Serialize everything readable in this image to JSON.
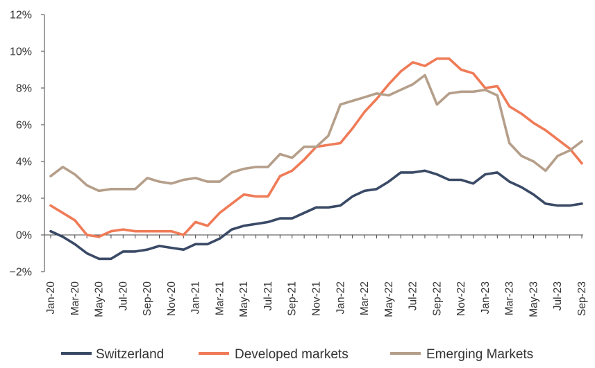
{
  "chart_data": {
    "type": "line",
    "title": "",
    "xlabel": "",
    "ylabel": "",
    "ylim": [
      -2,
      12
    ],
    "yticks": [
      -2,
      0,
      2,
      4,
      6,
      8,
      10,
      12
    ],
    "ytick_format": "{v}%",
    "ytick_labels": [
      "−2%",
      "0%",
      "2%",
      "4%",
      "6%",
      "8%",
      "10%",
      "12%"
    ],
    "x": [
      "Jan-20",
      "Feb-20",
      "Mar-20",
      "Apr-20",
      "May-20",
      "Jun-20",
      "Jul-20",
      "Aug-20",
      "Sep-20",
      "Oct-20",
      "Nov-20",
      "Dec-20",
      "Jan-21",
      "Feb-21",
      "Mar-21",
      "Apr-21",
      "May-21",
      "Jun-21",
      "Jul-21",
      "Aug-21",
      "Sep-21",
      "Oct-21",
      "Nov-21",
      "Dec-21",
      "Jan-22",
      "Feb-22",
      "Mar-22",
      "Apr-22",
      "May-22",
      "Jun-22",
      "Jul-22",
      "Aug-22",
      "Sep-22",
      "Oct-22",
      "Nov-22",
      "Dec-22",
      "Jan-23",
      "Feb-23",
      "Mar-23",
      "Apr-23",
      "May-23",
      "Jun-23",
      "Jul-23",
      "Aug-23",
      "Sep-23"
    ],
    "xtick_labels": [
      "Jan-20",
      "Mar-20",
      "May-20",
      "Jul-20",
      "Sep-20",
      "Nov-20",
      "Jan-21",
      "Mar-21",
      "May-21",
      "Jul-21",
      "Sep-21",
      "Nov-21",
      "Jan-22",
      "Mar-22",
      "May-22",
      "Jul-22",
      "Sep-22",
      "Nov-22",
      "Jan-23",
      "Mar-23",
      "May-23",
      "Jul-23",
      "Sep-23"
    ],
    "grid": false,
    "legend_position": "bottom",
    "series": [
      {
        "name": "Switzerland",
        "color": "#3a4a66",
        "values": [
          0.2,
          -0.1,
          -0.5,
          -1.0,
          -1.3,
          -1.3,
          -0.9,
          -0.9,
          -0.8,
          -0.6,
          -0.7,
          -0.8,
          -0.5,
          -0.5,
          -0.2,
          0.3,
          0.5,
          0.6,
          0.7,
          0.9,
          0.9,
          1.2,
          1.5,
          1.5,
          1.6,
          2.1,
          2.4,
          2.5,
          2.9,
          3.4,
          3.4,
          3.5,
          3.3,
          3.0,
          3.0,
          2.8,
          3.3,
          3.4,
          2.9,
          2.6,
          2.2,
          1.7,
          1.6,
          1.6,
          1.7
        ]
      },
      {
        "name": "Developed markets",
        "color": "#ef7b57",
        "values": [
          1.6,
          1.2,
          0.8,
          0.0,
          -0.1,
          0.2,
          0.3,
          0.2,
          0.2,
          0.2,
          0.2,
          0.0,
          0.7,
          0.5,
          1.2,
          1.7,
          2.2,
          2.1,
          2.1,
          3.2,
          3.5,
          4.1,
          4.8,
          4.9,
          5.0,
          5.8,
          6.7,
          7.4,
          8.2,
          8.9,
          9.4,
          9.2,
          9.6,
          9.6,
          9.0,
          8.8,
          8.0,
          8.1,
          7.0,
          6.6,
          6.1,
          5.7,
          5.2,
          4.7,
          3.9
        ]
      },
      {
        "name": "Emerging Markets",
        "color": "#b59f8a",
        "values": [
          3.2,
          3.7,
          3.3,
          2.7,
          2.4,
          2.5,
          2.5,
          2.5,
          3.1,
          2.9,
          2.8,
          3.0,
          3.1,
          2.9,
          2.9,
          3.4,
          3.6,
          3.7,
          3.7,
          4.4,
          4.2,
          4.8,
          4.8,
          5.4,
          7.1,
          7.3,
          7.5,
          7.7,
          7.6,
          7.9,
          8.2,
          8.7,
          7.1,
          7.7,
          7.8,
          7.8,
          7.9,
          7.6,
          5.0,
          4.3,
          4.0,
          3.5,
          4.3,
          4.6,
          5.1
        ]
      }
    ]
  }
}
